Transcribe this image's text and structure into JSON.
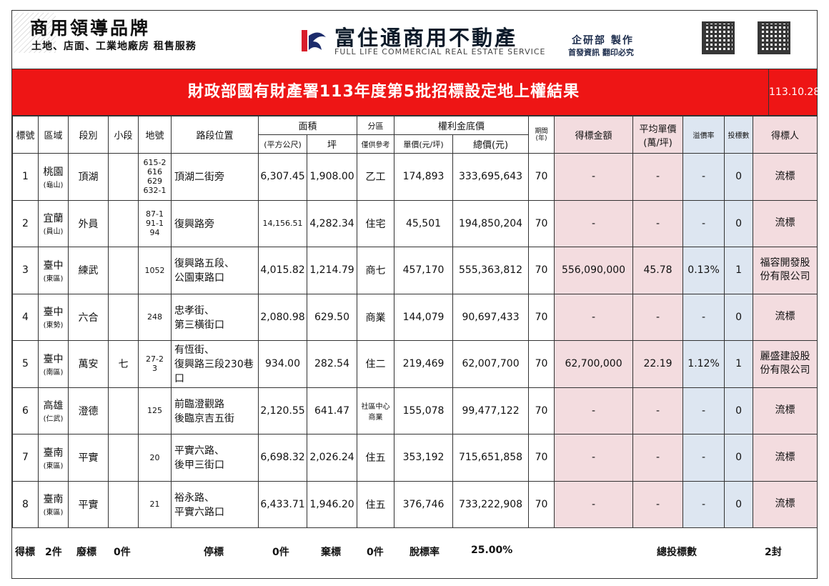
{
  "header": {
    "brand_title": "商用領導品牌",
    "brand_sub": "土地、店面、工業地廠房 租售服務",
    "company_name": "富住通商用不動產",
    "company_en": "FULL LIFE COMMERCIAL REAL ESTATE SERVICE",
    "dept": "企研部 製作",
    "notice": "首發資訊 翻印必究"
  },
  "title": "財政部國有財產署113年度第5批招標設定地上權結果",
  "date": "113.10.28",
  "columns": {
    "no": "標號",
    "district": "區域",
    "section": "段別",
    "subsection": "小段",
    "parcel": "地號",
    "location": "路段位置",
    "area": "面積",
    "area_m2": "(平方公尺)",
    "area_ping": "坪",
    "zone": "分區",
    "zone_note": "僅供參考",
    "price": "權利金底價",
    "unit_price": "單價(元/坪)",
    "total_price": "總價(元)",
    "term_a": "期間",
    "term_b": "(年)",
    "bid_amount": "得標金額",
    "avg_price_a": "平均單價",
    "avg_price_b": "(萬/坪)",
    "premium": "溢價率",
    "bids": "投標數",
    "winner": "得標人"
  },
  "rows": [
    {
      "no": "1",
      "district": "桃園",
      "sub": "(龜山)",
      "section": "頂湖",
      "subsection": "",
      "parcel": "615-2\n616\n629\n632-1",
      "location": "頂湖二街旁",
      "area_m2": "6,307.45",
      "area_ping": "1,908.00",
      "zone": "乙工",
      "unit_price": "174,893",
      "total_price": "333,695,643",
      "term": "70",
      "bid": "-",
      "avg": "-",
      "premium": "-",
      "bids": "0",
      "winner": "流標"
    },
    {
      "no": "2",
      "district": "宜蘭",
      "sub": "(員山)",
      "section": "外員",
      "subsection": "",
      "parcel": "87-1\n91-1\n94",
      "location": "復興路旁",
      "area_m2": "14,156.51",
      "area_ping": "4,282.34",
      "zone": "住宅",
      "unit_price": "45,501",
      "total_price": "194,850,204",
      "term": "70",
      "bid": "-",
      "avg": "-",
      "premium": "-",
      "bids": "0",
      "winner": "流標"
    },
    {
      "no": "3",
      "district": "臺中",
      "sub": "(東區)",
      "section": "練武",
      "subsection": "",
      "parcel": "1052",
      "location": "復興路五段、\n公園東路口",
      "area_m2": "4,015.82",
      "area_ping": "1,214.79",
      "zone": "商七",
      "unit_price": "457,170",
      "total_price": "555,363,812",
      "term": "70",
      "bid": "556,090,000",
      "avg": "45.78",
      "premium": "0.13%",
      "bids": "1",
      "winner": "福容開發股\n份有限公司"
    },
    {
      "no": "4",
      "district": "臺中",
      "sub": "(東勢)",
      "section": "六合",
      "subsection": "",
      "parcel": "248",
      "location": "忠孝街、\n第三橫街口",
      "area_m2": "2,080.98",
      "area_ping": "629.50",
      "zone": "商業",
      "unit_price": "144,079",
      "total_price": "90,697,433",
      "term": "70",
      "bid": "-",
      "avg": "-",
      "premium": "-",
      "bids": "0",
      "winner": "流標"
    },
    {
      "no": "5",
      "district": "臺中",
      "sub": "(南區)",
      "section": "萬安",
      "subsection": "七",
      "parcel": "27-2\n3",
      "location": "有恆街、\n復興路三段230巷\n口",
      "area_m2": "934.00",
      "area_ping": "282.54",
      "zone": "住二",
      "unit_price": "219,469",
      "total_price": "62,007,700",
      "term": "70",
      "bid": "62,700,000",
      "avg": "22.19",
      "premium": "1.12%",
      "bids": "1",
      "winner": "麗盛建設股\n份有限公司"
    },
    {
      "no": "6",
      "district": "高雄",
      "sub": "(仁武)",
      "section": "澄德",
      "subsection": "",
      "parcel": "125",
      "location": "前臨澄觀路\n後臨京吉五街",
      "area_m2": "2,120.55",
      "area_ping": "641.47",
      "zone": "社區中心\n商業",
      "unit_price": "155,078",
      "total_price": "99,477,122",
      "term": "70",
      "bid": "-",
      "avg": "-",
      "premium": "-",
      "bids": "0",
      "winner": "流標"
    },
    {
      "no": "7",
      "district": "臺南",
      "sub": "(東區)",
      "section": "平實",
      "subsection": "",
      "parcel": "20",
      "location": "平實六路、\n後甲三街口",
      "area_m2": "6,698.32",
      "area_ping": "2,026.24",
      "zone": "住五",
      "unit_price": "353,192",
      "total_price": "715,651,858",
      "term": "70",
      "bid": "-",
      "avg": "-",
      "premium": "-",
      "bids": "0",
      "winner": "流標"
    },
    {
      "no": "8",
      "district": "臺南",
      "sub": "(東區)",
      "section": "平實",
      "subsection": "",
      "parcel": "21",
      "location": "裕永路、\n平實六路口",
      "area_m2": "6,433.71",
      "area_ping": "1,946.20",
      "zone": "住五",
      "unit_price": "376,746",
      "total_price": "733,222,908",
      "term": "70",
      "bid": "-",
      "avg": "-",
      "premium": "-",
      "bids": "0",
      "winner": "流標"
    }
  ],
  "footer": {
    "won_label": "得標",
    "won_value": "2件",
    "void_label": "廢標",
    "void_value": "0件",
    "stop_label": "停標",
    "stop_value": "0件",
    "abandon_label": "棄標",
    "abandon_value": "0件",
    "rate_label": "脫標率",
    "rate_value": "25.00%",
    "total_label": "總投標數",
    "total_value": "2封"
  }
}
